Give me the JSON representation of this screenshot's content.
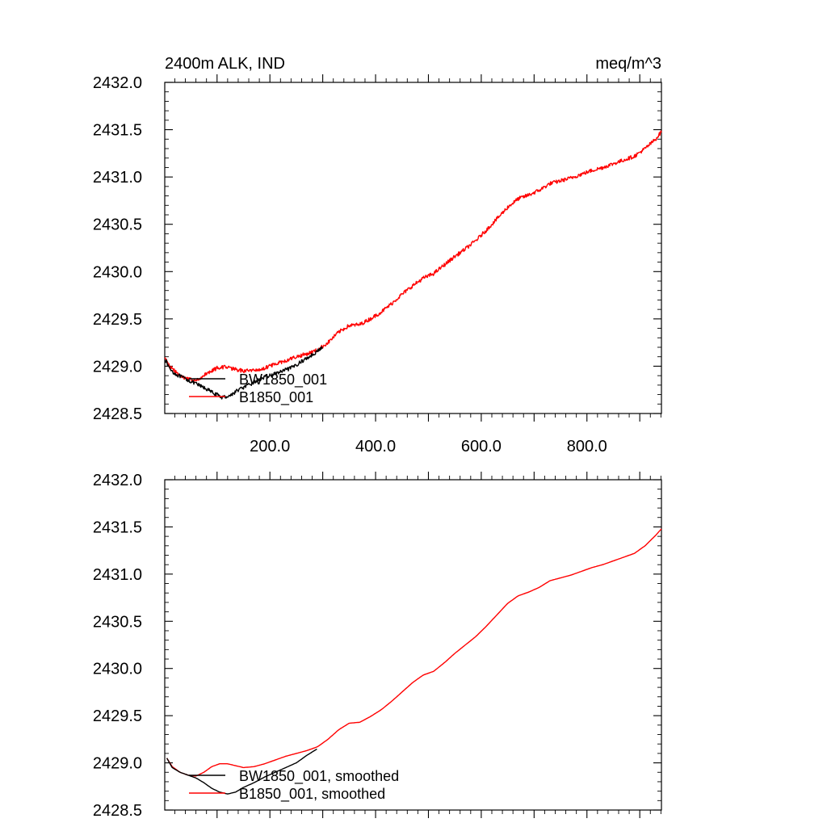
{
  "chart_data": [
    {
      "type": "line",
      "title_left": "2400m ALK, IND",
      "title_right": "meq/m^3",
      "xlabel": "",
      "ylabel": "",
      "xlim": [
        1,
        941
      ],
      "ylim": [
        2428.5,
        2432.0
      ],
      "x_ticks": [
        200,
        400,
        600,
        800
      ],
      "x_tick_labels": [
        "200.0",
        "400.0",
        "600.0",
        "800.0"
      ],
      "x_tick_labels_visible": true,
      "y_ticks": [
        2428.5,
        2429.0,
        2429.5,
        2430.0,
        2430.5,
        2431.0,
        2431.5,
        2432.0
      ],
      "y_tick_labels": [
        "2428.5",
        "2429.0",
        "2429.5",
        "2430.0",
        "2430.5",
        "2431.0",
        "2431.5",
        "2432.0"
      ],
      "legend_position": "bottom-left",
      "noise": 0.02,
      "series": [
        {
          "name": "BW1850_001",
          "color": "#000000",
          "x": [
            1,
            10,
            20,
            35,
            50,
            65,
            80,
            95,
            110,
            125,
            140,
            160,
            180,
            200,
            220,
            240,
            260,
            280,
            300
          ],
          "y": [
            2429.08,
            2428.98,
            2428.92,
            2428.88,
            2428.84,
            2428.8,
            2428.76,
            2428.71,
            2428.67,
            2428.69,
            2428.75,
            2428.8,
            2428.86,
            2428.9,
            2428.94,
            2428.98,
            2429.05,
            2429.12,
            2429.2
          ]
        },
        {
          "name": "B1850_001",
          "color": "#ff0000",
          "x": [
            1,
            10,
            25,
            40,
            55,
            70,
            85,
            100,
            115,
            130,
            150,
            170,
            190,
            210,
            230,
            250,
            270,
            290,
            310,
            330,
            350,
            370,
            390,
            410,
            430,
            450,
            470,
            490,
            510,
            530,
            550,
            570,
            590,
            610,
            630,
            650,
            670,
            690,
            710,
            730,
            750,
            770,
            790,
            810,
            830,
            850,
            870,
            890,
            910,
            930,
            941
          ],
          "y": [
            2429.08,
            2429.0,
            2428.92,
            2428.87,
            2428.85,
            2428.88,
            2428.94,
            2428.98,
            2428.99,
            2428.97,
            2428.95,
            2428.96,
            2428.98,
            2429.02,
            2429.06,
            2429.1,
            2429.13,
            2429.17,
            2429.25,
            2429.36,
            2429.43,
            2429.44,
            2429.5,
            2429.57,
            2429.66,
            2429.76,
            2429.85,
            2429.93,
            2429.98,
            2430.07,
            2430.16,
            2430.24,
            2430.33,
            2430.44,
            2430.56,
            2430.68,
            2430.77,
            2430.81,
            2430.86,
            2430.93,
            2430.96,
            2430.99,
            2431.03,
            2431.07,
            2431.1,
            2431.14,
            2431.18,
            2431.22,
            2431.3,
            2431.4,
            2431.48
          ]
        }
      ]
    },
    {
      "type": "line",
      "title_left": "",
      "title_right": "",
      "xlabel": "",
      "ylabel": "",
      "xlim": [
        1,
        941
      ],
      "ylim": [
        2428.5,
        2432.0
      ],
      "x_ticks": [
        200,
        400,
        600,
        800
      ],
      "x_tick_labels": [],
      "x_tick_labels_visible": false,
      "y_ticks": [
        2428.5,
        2429.0,
        2429.5,
        2430.0,
        2430.5,
        2431.0,
        2431.5,
        2432.0
      ],
      "y_tick_labels": [
        "2428.5",
        "2429.0",
        "2429.5",
        "2430.0",
        "2430.5",
        "2431.0",
        "2431.5",
        "2432.0"
      ],
      "legend_position": "bottom-left",
      "noise": 0.0,
      "series": [
        {
          "name": "BW1850_001, smoothed",
          "color": "#000000",
          "x": [
            5,
            15,
            30,
            45,
            60,
            75,
            90,
            105,
            120,
            135,
            150,
            170,
            190,
            210,
            230,
            250,
            270,
            290
          ],
          "y": [
            2429.05,
            2428.95,
            2428.9,
            2428.87,
            2428.84,
            2428.79,
            2428.73,
            2428.69,
            2428.67,
            2428.69,
            2428.74,
            2428.79,
            2428.85,
            2428.9,
            2428.95,
            2429.0,
            2429.08,
            2429.15
          ]
        },
        {
          "name": "B1850_001, smoothed",
          "color": "#ff0000",
          "x": [
            5,
            15,
            30,
            45,
            60,
            75,
            90,
            105,
            120,
            135,
            150,
            170,
            190,
            210,
            230,
            250,
            270,
            290,
            310,
            330,
            350,
            370,
            390,
            410,
            430,
            450,
            470,
            490,
            510,
            530,
            550,
            570,
            590,
            610,
            630,
            650,
            670,
            690,
            710,
            730,
            750,
            770,
            790,
            810,
            830,
            850,
            870,
            890,
            910,
            930,
            941
          ],
          "y": [
            2429.05,
            2428.96,
            2428.9,
            2428.87,
            2428.86,
            2428.9,
            2428.96,
            2428.99,
            2428.99,
            2428.97,
            2428.95,
            2428.96,
            2428.99,
            2429.03,
            2429.07,
            2429.1,
            2429.13,
            2429.17,
            2429.25,
            2429.35,
            2429.42,
            2429.43,
            2429.49,
            2429.56,
            2429.65,
            2429.75,
            2429.85,
            2429.93,
            2429.97,
            2430.06,
            2430.16,
            2430.25,
            2430.34,
            2430.45,
            2430.57,
            2430.69,
            2430.77,
            2430.81,
            2430.86,
            2430.93,
            2430.96,
            2430.99,
            2431.03,
            2431.07,
            2431.1,
            2431.14,
            2431.18,
            2431.22,
            2431.3,
            2431.41,
            2431.48
          ]
        }
      ]
    }
  ]
}
